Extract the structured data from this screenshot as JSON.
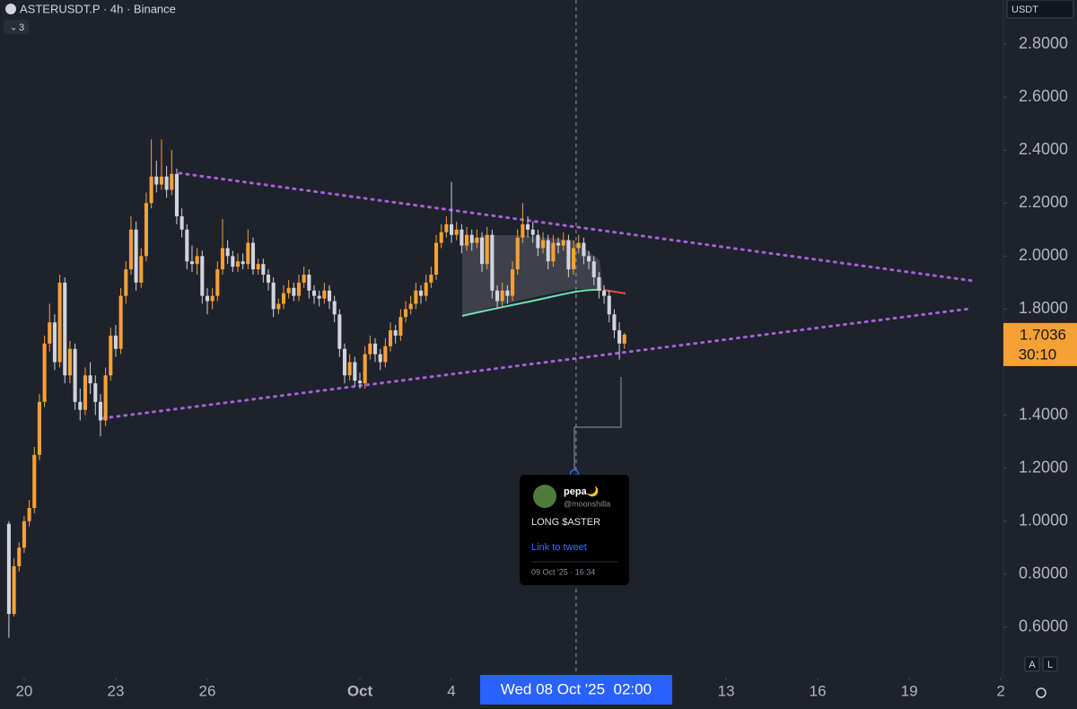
{
  "chart_data": {
    "type": "candlestick",
    "title": "ASTERUSDT.P · 4h · Binance",
    "indicator_count": "3",
    "currency": "USDT",
    "up_color": "#f6a135",
    "down_color": "#d1d4dc",
    "ylim": [
      0.41,
      2.966
    ],
    "yticks": [
      {
        "value": 0.6,
        "label": "0.6000"
      },
      {
        "value": 0.8,
        "label": "0.8000"
      },
      {
        "value": 1.0,
        "label": "1.0000"
      },
      {
        "value": 1.2,
        "label": "1.2000"
      },
      {
        "value": 1.4,
        "label": "1.4000"
      },
      {
        "value": 1.8,
        "label": "1.8000"
      },
      {
        "value": 2.0,
        "label": "2.0000"
      },
      {
        "value": 2.2,
        "label": "2.2000"
      },
      {
        "value": 2.4,
        "label": "2.4000"
      },
      {
        "value": 2.6,
        "label": "2.6000"
      },
      {
        "value": 2.8,
        "label": "2.8000"
      }
    ],
    "xlim": [
      -19,
      770
    ],
    "xticks": [
      {
        "value": 0,
        "label": "20"
      },
      {
        "value": 72,
        "label": "23"
      },
      {
        "value": 144,
        "label": "26"
      },
      {
        "value": 264,
        "label": "Oct"
      },
      {
        "value": 336,
        "label": "4"
      },
      {
        "value": 552,
        "label": "13"
      },
      {
        "value": 624,
        "label": "16"
      },
      {
        "value": 696,
        "label": "19"
      },
      {
        "value": 768,
        "label": "2"
      }
    ],
    "crosshair": {
      "x": 434,
      "label": "Wed 08 Oct '25  02:00"
    },
    "last_price": {
      "value": 1.7036,
      "label": "1.7036",
      "countdown": "30:10"
    },
    "x": [
      -12,
      -8,
      -4,
      0,
      4,
      8,
      12,
      16,
      20,
      24,
      28,
      32,
      36,
      40,
      44,
      48,
      52,
      56,
      60,
      64,
      68,
      72,
      76,
      80,
      84,
      88,
      92,
      96,
      100,
      104,
      108,
      112,
      116,
      120,
      124,
      128,
      132,
      136,
      140,
      144,
      148,
      152,
      156,
      160,
      164,
      168,
      172,
      176,
      180,
      184,
      188,
      192,
      196,
      200,
      204,
      208,
      212,
      216,
      220,
      224,
      228,
      232,
      236,
      240,
      244,
      248,
      252,
      256,
      260,
      264,
      268,
      272,
      276,
      280,
      284,
      288,
      292,
      296,
      300,
      304,
      308,
      312,
      316,
      320,
      324,
      328,
      332,
      336,
      340,
      344,
      348,
      352,
      356,
      360,
      364,
      368,
      372,
      376,
      380,
      384,
      388,
      392,
      396,
      400,
      404,
      408,
      412,
      416,
      420,
      424,
      428,
      432,
      436,
      440,
      444,
      448,
      452,
      456,
      460,
      464,
      468,
      472
    ],
    "ohlc": [
      [
        0.99,
        1.0,
        0.56,
        0.65
      ],
      [
        0.65,
        0.86,
        0.64,
        0.83
      ],
      [
        0.83,
        0.92,
        0.81,
        0.9
      ],
      [
        0.9,
        1.02,
        0.88,
        1.0
      ],
      [
        1.0,
        1.08,
        0.98,
        1.05
      ],
      [
        1.05,
        1.28,
        1.03,
        1.25
      ],
      [
        1.25,
        1.48,
        1.23,
        1.45
      ],
      [
        1.45,
        1.7,
        1.43,
        1.67
      ],
      [
        1.67,
        1.82,
        1.64,
        1.75
      ],
      [
        1.75,
        1.78,
        1.57,
        1.6
      ],
      [
        1.6,
        1.93,
        1.58,
        1.9
      ],
      [
        1.9,
        1.92,
        1.52,
        1.55
      ],
      [
        1.55,
        1.68,
        1.52,
        1.65
      ],
      [
        1.65,
        1.67,
        1.42,
        1.45
      ],
      [
        1.45,
        1.5,
        1.38,
        1.42
      ],
      [
        1.42,
        1.58,
        1.4,
        1.55
      ],
      [
        1.55,
        1.6,
        1.48,
        1.52
      ],
      [
        1.52,
        1.55,
        1.4,
        1.45
      ],
      [
        1.45,
        1.48,
        1.32,
        1.38
      ],
      [
        1.38,
        1.58,
        1.36,
        1.55
      ],
      [
        1.55,
        1.73,
        1.53,
        1.7
      ],
      [
        1.7,
        1.74,
        1.62,
        1.65
      ],
      [
        1.65,
        1.88,
        1.63,
        1.85
      ],
      [
        1.85,
        1.98,
        1.82,
        1.95
      ],
      [
        1.95,
        2.15,
        1.93,
        2.1
      ],
      [
        2.1,
        2.13,
        1.87,
        1.9
      ],
      [
        1.9,
        2.03,
        1.88,
        2.0
      ],
      [
        2.0,
        2.24,
        1.98,
        2.2
      ],
      [
        2.2,
        2.44,
        2.18,
        2.3
      ],
      [
        2.3,
        2.36,
        2.24,
        2.27
      ],
      [
        2.27,
        2.44,
        2.25,
        2.3
      ],
      [
        2.3,
        2.34,
        2.22,
        2.25
      ],
      [
        2.25,
        2.4,
        2.23,
        2.31
      ],
      [
        2.31,
        2.33,
        2.12,
        2.15
      ],
      [
        2.15,
        2.18,
        2.07,
        2.1
      ],
      [
        2.1,
        2.12,
        1.95,
        1.98
      ],
      [
        1.98,
        2.04,
        1.94,
        1.97
      ],
      [
        1.97,
        2.03,
        1.93,
        2.0
      ],
      [
        2.0,
        2.02,
        1.82,
        1.85
      ],
      [
        1.85,
        1.88,
        1.78,
        1.83
      ],
      [
        1.83,
        1.88,
        1.8,
        1.85
      ],
      [
        1.85,
        1.98,
        1.83,
        1.95
      ],
      [
        1.95,
        2.14,
        1.93,
        2.03
      ],
      [
        2.03,
        2.06,
        1.97,
        2.0
      ],
      [
        2.0,
        2.02,
        1.94,
        1.96
      ],
      [
        1.96,
        2.01,
        1.94,
        1.98
      ],
      [
        1.98,
        2.01,
        1.95,
        1.97
      ],
      [
        1.97,
        2.1,
        1.95,
        2.05
      ],
      [
        2.05,
        2.07,
        1.93,
        1.95
      ],
      [
        1.95,
        1.99,
        1.93,
        1.97
      ],
      [
        1.97,
        1.99,
        1.9,
        1.93
      ],
      [
        1.93,
        1.95,
        1.87,
        1.9
      ],
      [
        1.9,
        1.92,
        1.77,
        1.8
      ],
      [
        1.8,
        1.84,
        1.78,
        1.82
      ],
      [
        1.82,
        1.89,
        1.8,
        1.86
      ],
      [
        1.86,
        1.91,
        1.84,
        1.88
      ],
      [
        1.88,
        1.9,
        1.83,
        1.85
      ],
      [
        1.85,
        1.93,
        1.83,
        1.9
      ],
      [
        1.9,
        1.96,
        1.88,
        1.93
      ],
      [
        1.93,
        1.95,
        1.84,
        1.87
      ],
      [
        1.87,
        1.89,
        1.82,
        1.85
      ],
      [
        1.85,
        1.87,
        1.81,
        1.84
      ],
      [
        1.84,
        1.9,
        1.82,
        1.87
      ],
      [
        1.87,
        1.89,
        1.8,
        1.83
      ],
      [
        1.83,
        1.85,
        1.75,
        1.78
      ],
      [
        1.78,
        1.8,
        1.62,
        1.65
      ],
      [
        1.65,
        1.67,
        1.52,
        1.55
      ],
      [
        1.55,
        1.63,
        1.53,
        1.6
      ],
      [
        1.6,
        1.62,
        1.51,
        1.53
      ],
      [
        1.53,
        1.56,
        1.5,
        1.52
      ],
      [
        1.52,
        1.66,
        1.5,
        1.63
      ],
      [
        1.63,
        1.7,
        1.61,
        1.67
      ],
      [
        1.67,
        1.69,
        1.6,
        1.63
      ],
      [
        1.63,
        1.65,
        1.57,
        1.6
      ],
      [
        1.6,
        1.69,
        1.58,
        1.66
      ],
      [
        1.66,
        1.75,
        1.64,
        1.72
      ],
      [
        1.72,
        1.74,
        1.67,
        1.7
      ],
      [
        1.7,
        1.8,
        1.68,
        1.77
      ],
      [
        1.77,
        1.83,
        1.75,
        1.8
      ],
      [
        1.8,
        1.85,
        1.78,
        1.82
      ],
      [
        1.82,
        1.9,
        1.8,
        1.87
      ],
      [
        1.87,
        1.89,
        1.82,
        1.85
      ],
      [
        1.85,
        1.93,
        1.83,
        1.9
      ],
      [
        1.9,
        1.96,
        1.88,
        1.93
      ],
      [
        1.93,
        2.08,
        1.91,
        2.05
      ],
      [
        2.05,
        2.12,
        2.03,
        2.09
      ],
      [
        2.09,
        2.15,
        2.07,
        2.12
      ],
      [
        2.12,
        2.28,
        2.05,
        2.08
      ],
      [
        2.08,
        2.13,
        2.06,
        2.1
      ],
      [
        2.1,
        2.12,
        2.01,
        2.04
      ],
      [
        2.04,
        2.11,
        2.02,
        2.08
      ],
      [
        2.08,
        2.1,
        2.02,
        2.05
      ],
      [
        2.05,
        2.1,
        2.03,
        2.07
      ],
      [
        2.07,
        2.09,
        1.94,
        1.97
      ],
      [
        1.97,
        2.11,
        1.95,
        2.08
      ],
      [
        2.08,
        2.1,
        1.84,
        1.87
      ],
      [
        1.87,
        1.89,
        1.8,
        1.83
      ],
      [
        1.83,
        1.9,
        1.81,
        1.87
      ],
      [
        1.87,
        1.89,
        1.82,
        1.85
      ],
      [
        1.85,
        1.98,
        1.83,
        1.95
      ],
      [
        1.95,
        2.1,
        1.93,
        2.07
      ],
      [
        2.07,
        2.2,
        2.05,
        2.12
      ],
      [
        2.12,
        2.15,
        2.07,
        2.1
      ],
      [
        2.1,
        2.13,
        2.05,
        2.08
      ],
      [
        2.08,
        2.1,
        2.0,
        2.03
      ],
      [
        2.03,
        2.09,
        2.01,
        2.06
      ],
      [
        2.06,
        2.08,
        1.95,
        1.98
      ],
      [
        1.98,
        2.08,
        1.96,
        2.05
      ],
      [
        2.05,
        2.07,
        2.01,
        2.04
      ],
      [
        2.04,
        2.09,
        2.02,
        2.06
      ],
      [
        2.06,
        2.08,
        1.92,
        1.95
      ],
      [
        1.95,
        2.06,
        1.93,
        2.03
      ],
      [
        2.03,
        2.08,
        2.01,
        2.05
      ],
      [
        2.05,
        2.07,
        1.97,
        2.0
      ],
      [
        2.0,
        2.02,
        1.95,
        1.98
      ],
      [
        1.98,
        2.0,
        1.89,
        1.92
      ],
      [
        1.92,
        1.94,
        1.84,
        1.87
      ],
      [
        1.87,
        1.89,
        1.82,
        1.85
      ],
      [
        1.85,
        1.87,
        1.75,
        1.78
      ],
      [
        1.78,
        1.8,
        1.69,
        1.72
      ],
      [
        1.72,
        1.75,
        1.61,
        1.67
      ],
      [
        1.67,
        1.71,
        1.65,
        1.7036
      ]
    ]
  },
  "tweet": {
    "name": "pepa🌙",
    "handle": "@moonshilla",
    "text": "LONG $ASTER",
    "link": "Link to tweet",
    "date": "09 Oct '25 · 16:34"
  },
  "scale_buttons": [
    "A",
    "L"
  ]
}
